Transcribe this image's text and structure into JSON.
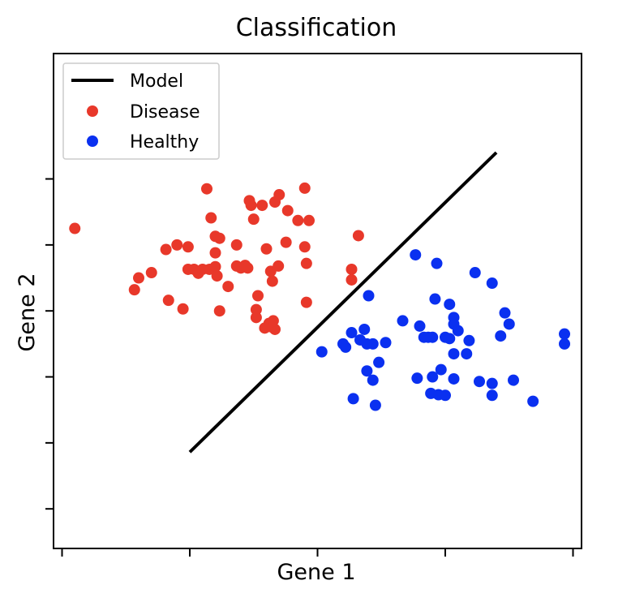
{
  "chart_data": {
    "type": "scatter",
    "title": "Classification",
    "xlabel": "Gene 1",
    "ylabel": "Gene 2",
    "xlim": [
      -3.1,
      3.1
    ],
    "ylim": [
      -3.6,
      3.9
    ],
    "x_ticks": [
      -3,
      -1.5,
      0,
      1.5,
      3
    ],
    "y_ticks": [
      -3,
      -2,
      -1,
      0,
      1,
      2
    ],
    "tick_labels_visible": false,
    "grid": false,
    "legend": {
      "position": "top-left",
      "entries": [
        "Model",
        "Disease",
        "Healthy"
      ]
    },
    "colors": {
      "model": "#000000",
      "disease": "#e8382a",
      "healthy": "#0a30f0"
    },
    "model_line": {
      "name": "Model",
      "x": [
        -1.5,
        2.1
      ],
      "y": [
        -2.14,
        2.4
      ]
    },
    "series": [
      {
        "name": "Disease",
        "points": [
          [
            -2.85,
            1.25
          ],
          [
            -2.1,
            0.5
          ],
          [
            -1.95,
            0.58
          ],
          [
            -2.15,
            0.32
          ],
          [
            -1.78,
            0.93
          ],
          [
            -1.65,
            1.0
          ],
          [
            -1.52,
            0.97
          ],
          [
            -1.45,
            0.63
          ],
          [
            -1.4,
            0.57
          ],
          [
            -1.35,
            0.63
          ],
          [
            -1.27,
            0.63
          ],
          [
            -1.2,
            0.67
          ],
          [
            -1.2,
            1.13
          ],
          [
            -1.15,
            1.1
          ],
          [
            -1.2,
            0.88
          ],
          [
            -1.25,
            1.41
          ],
          [
            -1.3,
            1.85
          ],
          [
            -1.18,
            0.53
          ],
          [
            -1.05,
            0.37
          ],
          [
            -0.95,
            0.68
          ],
          [
            -0.95,
            1.0
          ],
          [
            -0.9,
            0.65
          ],
          [
            -0.85,
            0.69
          ],
          [
            -0.82,
            0.65
          ],
          [
            -0.78,
            1.6
          ],
          [
            -0.8,
            1.67
          ],
          [
            -0.75,
            1.39
          ],
          [
            -0.65,
            1.6
          ],
          [
            -0.7,
            0.23
          ],
          [
            -0.72,
            0.02
          ],
          [
            -0.6,
            0.94
          ],
          [
            -0.55,
            0.6
          ],
          [
            -0.53,
            0.45
          ],
          [
            -0.5,
            1.65
          ],
          [
            -0.45,
            1.76
          ],
          [
            -0.37,
            1.04
          ],
          [
            -0.35,
            1.52
          ],
          [
            -0.15,
            1.86
          ],
          [
            -0.1,
            1.37
          ],
          [
            -0.5,
            -0.28
          ],
          [
            -0.55,
            -0.24
          ],
          [
            -0.57,
            -0.19
          ],
          [
            -0.62,
            -0.26
          ],
          [
            -0.52,
            -0.15
          ],
          [
            -1.75,
            0.16
          ],
          [
            -1.58,
            0.03
          ],
          [
            -1.15,
            0.0
          ],
          [
            -0.72,
            -0.1
          ],
          [
            -0.23,
            1.37
          ],
          [
            0.4,
            0.63
          ],
          [
            0.4,
            0.47
          ],
          [
            0.48,
            1.14
          ],
          [
            -1.52,
            0.63
          ],
          [
            -0.13,
            0.13
          ],
          [
            -0.15,
            0.97
          ],
          [
            -0.13,
            0.72
          ],
          [
            -0.46,
            0.68
          ]
        ]
      },
      {
        "name": "Healthy",
        "points": [
          [
            1.15,
            0.85
          ],
          [
            1.4,
            0.72
          ],
          [
            1.85,
            0.58
          ],
          [
            2.05,
            0.42
          ],
          [
            0.6,
            0.23
          ],
          [
            1.38,
            0.18
          ],
          [
            1.55,
            0.1
          ],
          [
            1.6,
            -0.1
          ],
          [
            2.2,
            -0.03
          ],
          [
            2.25,
            -0.2
          ],
          [
            0.55,
            -0.28
          ],
          [
            0.4,
            -0.33
          ],
          [
            0.5,
            -0.44
          ],
          [
            0.58,
            -0.5
          ],
          [
            0.65,
            -0.5
          ],
          [
            0.8,
            -0.48
          ],
          [
            1.0,
            -0.15
          ],
          [
            1.2,
            -0.23
          ],
          [
            1.25,
            -0.4
          ],
          [
            1.3,
            -0.4
          ],
          [
            1.35,
            -0.4
          ],
          [
            1.5,
            -0.4
          ],
          [
            1.55,
            -0.42
          ],
          [
            1.6,
            -0.2
          ],
          [
            1.65,
            -0.3
          ],
          [
            1.78,
            -0.45
          ],
          [
            2.15,
            -0.38
          ],
          [
            2.9,
            -0.35
          ],
          [
            2.9,
            -0.5
          ],
          [
            0.05,
            -0.62
          ],
          [
            0.3,
            -0.5
          ],
          [
            0.33,
            -0.55
          ],
          [
            1.6,
            -0.65
          ],
          [
            1.75,
            -0.65
          ],
          [
            0.72,
            -0.78
          ],
          [
            0.58,
            -0.91
          ],
          [
            0.65,
            -1.05
          ],
          [
            1.17,
            -1.02
          ],
          [
            1.45,
            -0.89
          ],
          [
            1.35,
            -1.0
          ],
          [
            1.9,
            -1.07
          ],
          [
            2.05,
            -1.1
          ],
          [
            2.3,
            -1.05
          ],
          [
            0.42,
            -1.33
          ],
          [
            0.68,
            -1.43
          ],
          [
            1.33,
            -1.25
          ],
          [
            1.42,
            -1.27
          ],
          [
            1.5,
            -1.28
          ],
          [
            2.05,
            -1.28
          ],
          [
            2.53,
            -1.37
          ],
          [
            1.6,
            -1.03
          ]
        ]
      }
    ]
  }
}
